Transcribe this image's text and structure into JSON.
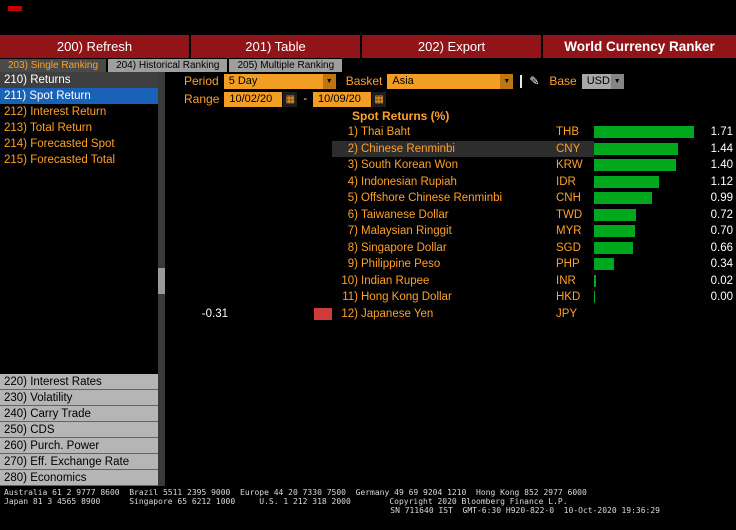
{
  "toolbar": {
    "tabs": [
      "200) Refresh",
      "201) Table",
      "202) Export"
    ],
    "title": "World Currency Ranker"
  },
  "ranking_tabs": [
    "203) Single Ranking",
    "204) Historical Ranking",
    "205) Multiple Ranking"
  ],
  "controls": {
    "period_label": "Period",
    "period_value": "5 Day",
    "basket_label": "Basket",
    "basket_value": "Asia",
    "base_label": "Base",
    "base_value": "USD"
  },
  "range": {
    "label": "Range",
    "start": "10/02/20",
    "separator": "-",
    "end": "10/09/20"
  },
  "icons": {
    "dropdown": "▼",
    "pencil": "✎",
    "calendar": "▦"
  },
  "sidebar": {
    "header": "210) Returns",
    "items": [
      "211) Spot Return",
      "212) Interest Return",
      "213) Total Return",
      "214) Forecasted Spot",
      "215) Forecasted Total"
    ],
    "selected_item": "211) Spot Return",
    "bottom_items": [
      "220) Interest Rates",
      "230) Volatility",
      "240) Carry Trade",
      "250) CDS",
      "260) Purch. Power",
      "270) Eff. Exchange Rate",
      "280) Economics"
    ]
  },
  "chart_data": {
    "type": "bar",
    "orientation": "horizontal",
    "title": "Spot Returns (%)",
    "categories": [
      "Thai Baht",
      "Chinese Renminbi",
      "South Korean Won",
      "Indonesian Rupiah",
      "Offshore Chinese Renminbi",
      "Taiwanese Dollar",
      "Malaysian Ringgit",
      "Singapore Dollar",
      "Philippine Peso",
      "Indian Rupee",
      "Hong Kong Dollar",
      "Japanese Yen"
    ],
    "tickers": [
      "THB",
      "CNY",
      "KRW",
      "IDR",
      "CNH",
      "TWD",
      "MYR",
      "SGD",
      "PHP",
      "INR",
      "HKD",
      "JPY"
    ],
    "values": [
      1.71,
      1.44,
      1.4,
      1.12,
      0.99,
      0.72,
      0.7,
      0.66,
      0.34,
      0.02,
      0.0,
      -0.31
    ],
    "xlim": [
      -0.31,
      1.71
    ],
    "positive_color": "#00a81e",
    "negative_color": "#cf3a3a",
    "highlighted_rank": 2
  },
  "footer": {
    "line1": "Australia 61 2 9777 8600  Brazil 5511 2395 9000  Europe 44 20 7330 7500  Germany 49 69 9204 1210  Hong Kong 852 2977 6000",
    "line2": "Japan 81 3 4565 8900      Singapore 65 6212 1000     U.S. 1 212 318 2000        Copyright 2020 Bloomberg Finance L.P.",
    "line3": "SN 711640 IST  GMT-6:30 H920-822-0  10-Oct-2020 19:36:29"
  }
}
